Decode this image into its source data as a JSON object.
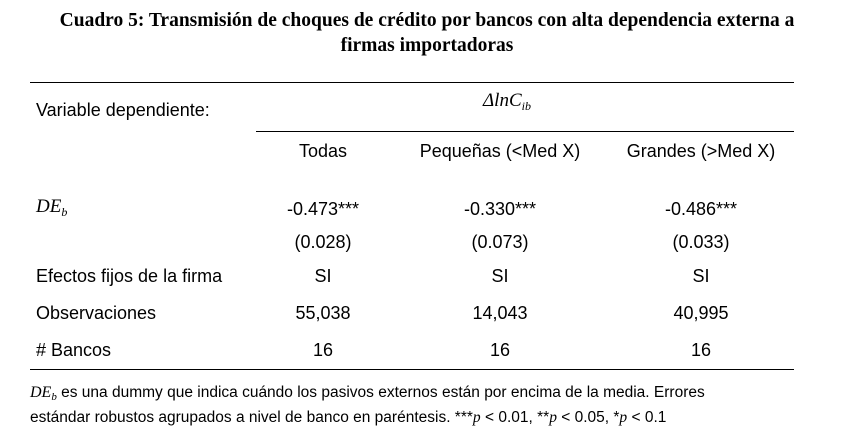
{
  "title": {
    "line1": "Cuadro 5: Transmisión de choques de crédito por bancos con alta dependencia externa a",
    "line2": "firmas importadoras"
  },
  "table": {
    "dependent_label": "Variable dependiente:",
    "dependent_var": {
      "base": "ΔlnC",
      "sub": "ib"
    },
    "columns": [
      "Todas",
      "Pequeñas (<Med X)",
      "Grandes (>Med X)"
    ],
    "de_row": {
      "label": {
        "base": "DE",
        "sub": "b"
      },
      "coefficients": [
        "-0.473***",
        "-0.330***",
        "-0.486***"
      ],
      "std_errors": [
        "(0.028)",
        "(0.073)",
        "(0.033)"
      ]
    },
    "rows": [
      {
        "label": "Efectos fijos de la firma",
        "values": [
          "SI",
          "SI",
          "SI"
        ]
      },
      {
        "label": "Observaciones",
        "values": [
          "55,038",
          "14,043",
          "40,995"
        ]
      },
      {
        "label": "# Bancos",
        "values": [
          "16",
          "16",
          "16"
        ]
      }
    ]
  },
  "note": {
    "var": {
      "base": "DE",
      "sub": "b"
    },
    "line1_text": " es una dummy que indica cuándo los pasivos externos están por encima de la media. Errores",
    "line2_text": "estándar robustos agrupados a nivel de banco en paréntesis. ***",
    "p_symbol": "p",
    "p1": " < 0.01, **",
    "p2": " < 0.05, *",
    "p3": " < 0.1"
  }
}
